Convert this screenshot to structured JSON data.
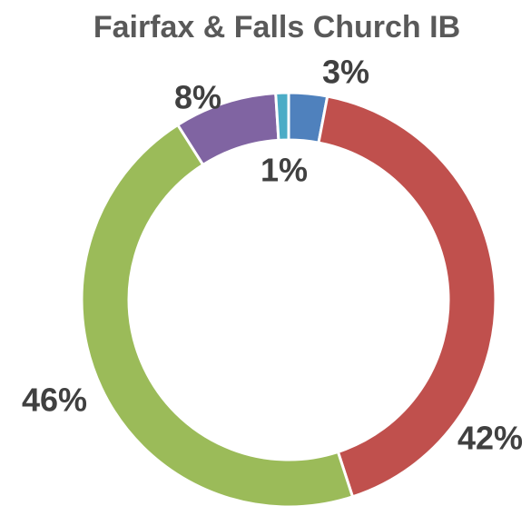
{
  "chart_data": {
    "type": "donut",
    "title": "Fairfax & Falls Church IB",
    "values": [
      3,
      42,
      46,
      8,
      1
    ],
    "value_labels": [
      "3%",
      "42%",
      "46%",
      "8%",
      "1%"
    ],
    "colors": [
      "#4f81bd",
      "#c0504d",
      "#9bbb59",
      "#8064a2",
      "#4bacc6"
    ]
  }
}
